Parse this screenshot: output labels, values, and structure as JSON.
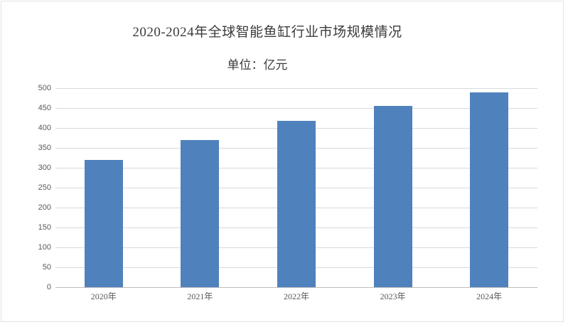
{
  "chart_data": {
    "type": "bar",
    "title": "2020-2024年全球智能鱼缸行业市场规模情况",
    "subtitle": "单位：亿元",
    "categories": [
      "2020年",
      "2021年",
      "2022年",
      "2023年",
      "2024年"
    ],
    "values": [
      320,
      370,
      418,
      455,
      490
    ],
    "xlabel": "",
    "ylabel": "",
    "ylim": [
      0,
      500
    ],
    "ytick_step": 50,
    "yticks": [
      0,
      50,
      100,
      150,
      200,
      250,
      300,
      350,
      400,
      450,
      500
    ],
    "grid": true,
    "legend": "none",
    "bar_color": "#4f81bd"
  },
  "colors": {
    "bar": "#4f81bd",
    "gridline": "#d9d9d9",
    "axis_line": "#bdbdbd",
    "title_text": "#3c3c3c",
    "tick_text": "#595959",
    "frame_border": "#e3e3e3",
    "background": "#ffffff"
  }
}
